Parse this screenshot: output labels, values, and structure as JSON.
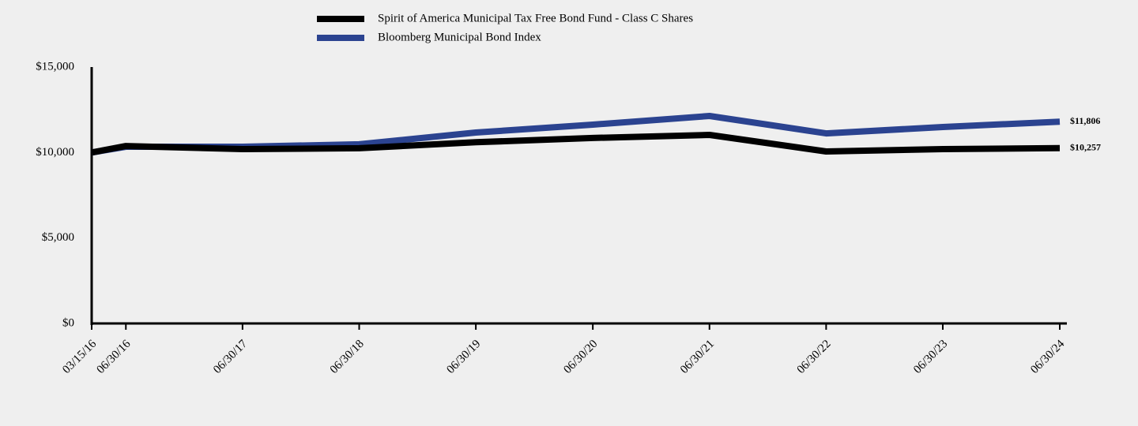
{
  "chart_data": {
    "type": "line",
    "x": [
      "03/15/16",
      "06/30/16",
      "06/30/17",
      "06/30/18",
      "06/30/19",
      "06/30/20",
      "06/30/21",
      "06/30/22",
      "06/30/23",
      "06/30/24"
    ],
    "xlim": [
      "03/15/16",
      "06/30/24"
    ],
    "series": [
      {
        "name": "Spirit of America Municipal Tax Free Bond Fund - Class C Shares",
        "color": "#000000",
        "values": [
          10000,
          10380,
          10200,
          10250,
          10600,
          10850,
          11030,
          10060,
          10200,
          10257
        ],
        "value_labels": [
          null,
          null,
          null,
          null,
          null,
          null,
          null,
          null,
          null,
          "$10,257"
        ]
      },
      {
        "name": "Bloomberg Municipal Bond Index",
        "color": "#2b4390",
        "values": [
          10000,
          10340,
          10340,
          10480,
          11170,
          11630,
          12140,
          11120,
          11490,
          11806
        ],
        "value_labels": [
          null,
          null,
          null,
          null,
          null,
          null,
          null,
          null,
          null,
          "$11,806"
        ]
      }
    ],
    "ylim": [
      0,
      15000
    ],
    "yticks": [
      {
        "value": 0,
        "label": "$0"
      },
      {
        "value": 5000,
        "label": "$5,000"
      },
      {
        "value": 10000,
        "label": "$10,000"
      },
      {
        "value": 15000,
        "label": "$15,000"
      }
    ],
    "grid": false
  }
}
